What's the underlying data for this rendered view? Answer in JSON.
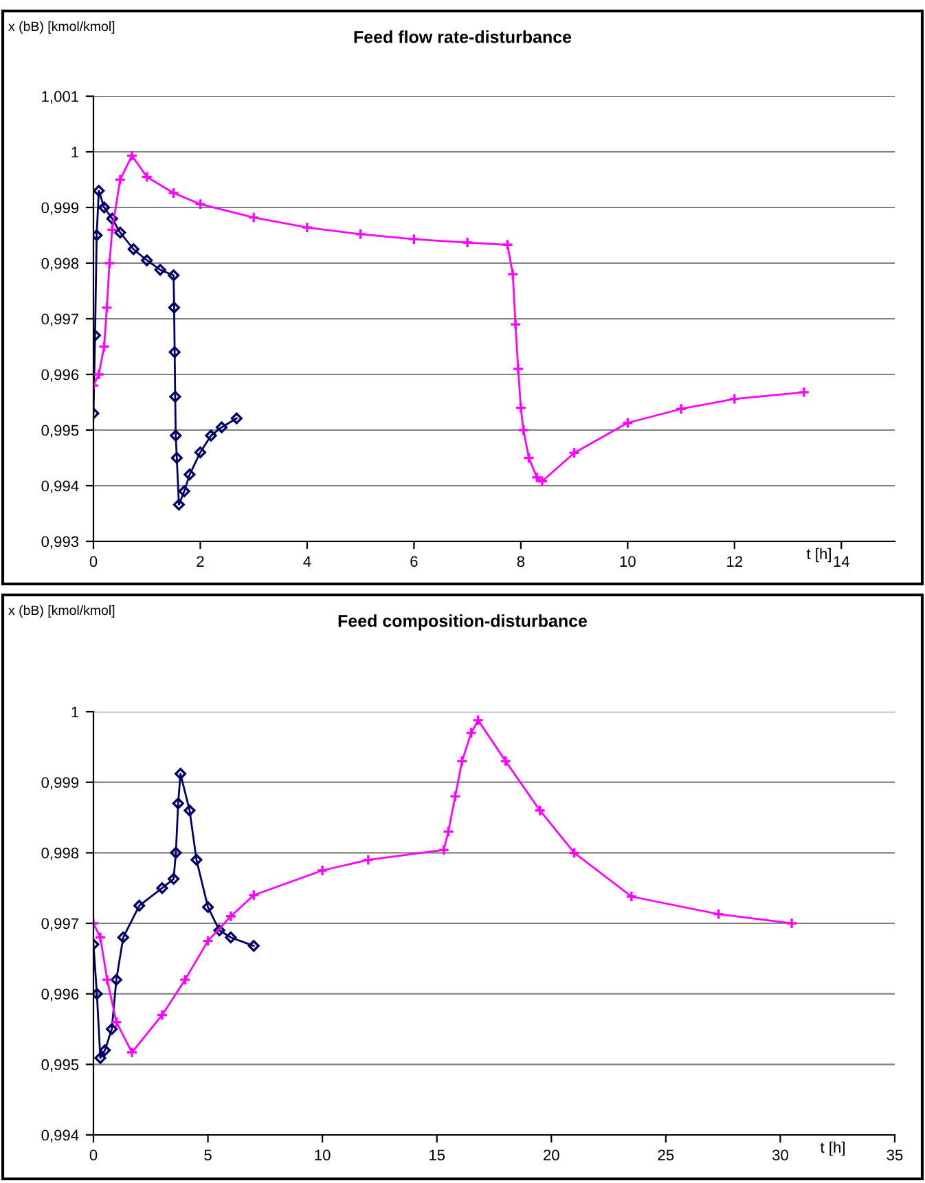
{
  "chart_data": [
    {
      "type": "line",
      "title": "Feed flow rate-disturbance",
      "ylabel": "x (bB) [kmol/kmol]",
      "xlabel": "t [h]",
      "grid": "y",
      "line_style": "solid",
      "xlim": [
        0,
        15
      ],
      "xticks": [
        0,
        2,
        4,
        6,
        8,
        10,
        12,
        14
      ],
      "ylim": [
        0.993,
        1.001
      ],
      "yticks": [
        {
          "value": 0.993,
          "label": "0,993"
        },
        {
          "value": 0.994,
          "label": "0,994"
        },
        {
          "value": 0.995,
          "label": "0,995"
        },
        {
          "value": 0.996,
          "label": "0,996"
        },
        {
          "value": 0.997,
          "label": "0,997"
        },
        {
          "value": 0.998,
          "label": "0,998"
        },
        {
          "value": 0.999,
          "label": "0,999"
        },
        1,
        {
          "value": 1.001,
          "label": "1,001"
        }
      ],
      "series": [
        {
          "color": "#000066",
          "marker": "diamond",
          "x": [
            0,
            0.03,
            0.06,
            0.1,
            0.2,
            0.35,
            0.5,
            0.75,
            1,
            1.25,
            1.5,
            1.51,
            1.52,
            1.53,
            1.54,
            1.56,
            1.6,
            1.7,
            1.8,
            2,
            2.2,
            2.4,
            2.68
          ],
          "values": [
            0.9953,
            0.9967,
            0.9985,
            0.9993,
            0.999,
            0.9988,
            0.99855,
            0.99825,
            0.99805,
            0.99788,
            0.99778,
            0.9972,
            0.9964,
            0.9956,
            0.9949,
            0.9945,
            0.99366,
            0.9939,
            0.9942,
            0.9946,
            0.9949,
            0.99505,
            0.99521
          ]
        },
        {
          "color": "#ff00ff",
          "marker": "cross",
          "x": [
            0,
            0.1,
            0.2,
            0.25,
            0.3,
            0.35,
            0.5,
            0.72,
            1,
            1.5,
            2,
            3,
            4,
            5,
            6,
            7,
            7.75,
            7.85,
            7.9,
            7.95,
            8,
            8.05,
            8.15,
            8.3,
            8.4,
            9,
            10,
            11,
            12,
            13.3
          ],
          "values": [
            0.9958,
            0.996,
            0.9965,
            0.9972,
            0.998,
            0.9986,
            0.9995,
            0.99993,
            0.99955,
            0.99926,
            0.99906,
            0.99882,
            0.99864,
            0.99852,
            0.99843,
            0.99837,
            0.99833,
            0.9978,
            0.9969,
            0.9961,
            0.9954,
            0.995,
            0.9945,
            0.99415,
            0.99408,
            0.99459,
            0.99513,
            0.99538,
            0.99556,
            0.99568
          ]
        }
      ]
    },
    {
      "type": "line",
      "title": "Feed composition-disturbance",
      "ylabel": "x (bB) [kmol/kmol]",
      "xlabel": "t [h]",
      "grid": "y",
      "line_style": "solid",
      "xlim": [
        0,
        35
      ],
      "xticks": [
        0,
        5,
        10,
        15,
        20,
        25,
        30,
        35
      ],
      "ylim": [
        0.994,
        1
      ],
      "yticks": [
        {
          "value": 0.994,
          "label": "0,994"
        },
        {
          "value": 0.995,
          "label": "0,995"
        },
        {
          "value": 0.996,
          "label": "0,996"
        },
        {
          "value": 0.997,
          "label": "0,997"
        },
        {
          "value": 0.998,
          "label": "0,998"
        },
        {
          "value": 0.999,
          "label": "0,999"
        },
        1
      ],
      "series": [
        {
          "color": "#000066",
          "marker": "diamond",
          "x": [
            0,
            0.15,
            0.3,
            0.5,
            0.8,
            1,
            1.3,
            2,
            3,
            3.5,
            3.6,
            3.7,
            3.8,
            4.2,
            4.5,
            5,
            5.5,
            6,
            7
          ],
          "values": [
            0.9967,
            0.996,
            0.99509,
            0.9952,
            0.9955,
            0.9962,
            0.9968,
            0.99725,
            0.9975,
            0.99763,
            0.998,
            0.9987,
            0.99912,
            0.9986,
            0.9979,
            0.99723,
            0.9969,
            0.9968,
            0.99668
          ]
        },
        {
          "color": "#ff00ff",
          "marker": "cross",
          "x": [
            0,
            0.3,
            0.6,
            1,
            1.68,
            3,
            4,
            5,
            6,
            7,
            10,
            12,
            15.3,
            15.5,
            15.8,
            16.1,
            16.5,
            16.8,
            18,
            19.5,
            21,
            23.5,
            27.3,
            30.5
          ],
          "values": [
            0.997,
            0.9968,
            0.9962,
            0.9956,
            0.99517,
            0.9957,
            0.9962,
            0.99675,
            0.9971,
            0.9974,
            0.99775,
            0.9979,
            0.99804,
            0.9983,
            0.9988,
            0.9993,
            0.9997,
            0.99988,
            0.9993,
            0.9986,
            0.998,
            0.99738,
            0.99713,
            0.997
          ]
        }
      ]
    }
  ]
}
